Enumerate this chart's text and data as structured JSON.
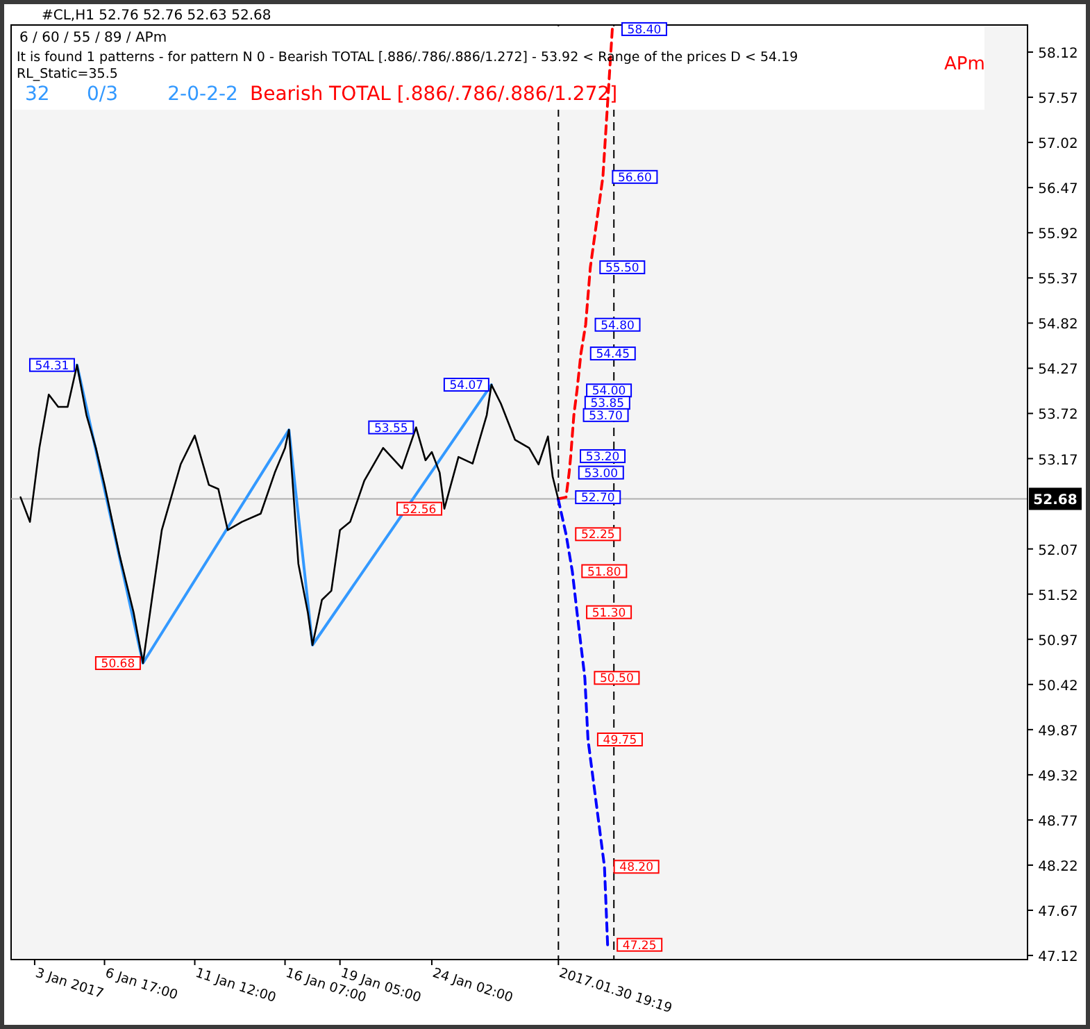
{
  "chart_data": {
    "type": "line",
    "title": "#CL,H1  52.76 52.76 52.63 52.68",
    "subtitle": "6 / 60 / 55 / 89 / APm",
    "x": [
      "2017-01-02T06:00",
      "2017-01-02T18:00",
      "2017-01-03T06:00",
      "2017-01-03T18:00",
      "2017-01-04T06:00",
      "2017-01-04T18:00",
      "2017-01-05T06:00",
      "2017-01-05T18:00",
      "2017-01-06T06:00",
      "2017-01-06T17:00",
      "2017-01-07T12:00",
      "2017-01-08T06:00",
      "2017-01-08T18:00",
      "2017-01-09T06:00",
      "2017-01-09T18:00",
      "2017-01-10T06:00",
      "2017-01-10T18:00",
      "2017-01-11T12:00",
      "2017-01-12T06:00",
      "2017-01-12T18:00",
      "2017-01-13T06:00",
      "2017-01-14T00:00",
      "2017-01-15T00:00",
      "2017-01-15T18:00",
      "2017-01-16T07:00",
      "2017-01-16T12:00",
      "2017-01-17T00:00",
      "2017-01-17T12:00",
      "2017-01-17T18:00",
      "2017-01-18T06:00",
      "2017-01-18T18:00",
      "2017-01-19T05:00",
      "2017-01-19T18:00",
      "2017-01-20T12:00",
      "2017-01-21T12:00",
      "2017-01-22T12:00",
      "2017-01-23T06:00",
      "2017-01-23T18:00",
      "2017-01-24T02:00",
      "2017-01-24T12:00",
      "2017-01-24T18:00",
      "2017-01-25T12:00",
      "2017-01-26T06:00",
      "2017-01-27T00:00",
      "2017-01-27T06:00",
      "2017-01-27T18:00",
      "2017-01-28T12:00",
      "2017-01-29T06:00",
      "2017-01-29T18:00",
      "2017-01-30T06:00",
      "2017-01-30T12:00",
      "2017-01-30T19:00"
    ],
    "series": [
      {
        "color": "#000000",
        "values": [
          52.7,
          52.4,
          53.3,
          53.95,
          53.8,
          53.8,
          54.31,
          53.7,
          53.3,
          52.85,
          52.0,
          51.3,
          50.68,
          51.5,
          52.3,
          52.7,
          53.1,
          53.45,
          52.85,
          52.8,
          52.3,
          52.4,
          52.5,
          53.0,
          53.3,
          53.52,
          51.89,
          51.3,
          50.9,
          51.45,
          51.56,
          52.3,
          52.4,
          52.9,
          53.3,
          53.05,
          53.55,
          53.15,
          53.25,
          53.0,
          52.56,
          53.19,
          53.11,
          53.7,
          54.07,
          53.84,
          53.4,
          53.3,
          53.1,
          53.44,
          52.95,
          52.68
        ]
      },
      {
        "color": "#3399ff",
        "x": [
          "2017-01-05T06:00",
          "2017-01-08T18:00",
          "2017-01-16T12:00",
          "2017-01-17T18:00",
          "2017-01-27T06:00"
        ],
        "values": [
          54.31,
          50.68,
          53.52,
          50.9,
          54.07
        ]
      },
      {
        "color": "#ff0000",
        "line_style": "dashed",
        "x": [
          "2017-01-30T19:00",
          "2017-01-31T05:00",
          "2017-01-31T09:00",
          "2017-01-31T11:00",
          "2017-01-31T15:00",
          "2017-01-31T17:00",
          "2017-01-31T19:00",
          "2017-02-01T00:00",
          "2017-02-01T06:00",
          "2017-02-01T12:00",
          "2017-02-02T04:00",
          "2017-02-02T16:00"
        ],
        "values": [
          52.68,
          52.7,
          53.0,
          53.2,
          53.7,
          53.85,
          54.0,
          54.45,
          54.8,
          55.5,
          56.6,
          58.4
        ]
      },
      {
        "color": "#0000ff",
        "line_style": "dashed",
        "x": [
          "2017-01-30T19:00",
          "2017-01-31T05:00",
          "2017-01-31T13:00",
          "2017-01-31T19:00",
          "2017-02-01T05:00",
          "2017-02-01T09:00",
          "2017-02-02T06:00",
          "2017-02-02T10:00"
        ],
        "values": [
          52.68,
          52.25,
          51.8,
          51.3,
          50.5,
          49.75,
          48.2,
          47.25
        ]
      }
    ],
    "xlim": [
      "2017-01-01T18:00",
      "2017-02-24T17:00"
    ],
    "ylim": [
      47.07,
      58.45
    ],
    "xticks": [
      {
        "value": "2017-01-03T00:00",
        "label": "3 Jan 2017"
      },
      {
        "value": "2017-01-06T17:00",
        "label": "6 Jan 17:00"
      },
      {
        "value": "2017-01-11T12:00",
        "label": "11 Jan 12:00"
      },
      {
        "value": "2017-01-16T07:00",
        "label": "16 Jan 07:00"
      },
      {
        "value": "2017-01-19T05:00",
        "label": "19 Jan 05:00"
      },
      {
        "value": "2017-01-24T02:00",
        "label": "24 Jan 02:00"
      },
      {
        "value": "2017-01-30T19:19",
        "label": "2017.01.30 19:19"
      }
    ],
    "yticks": [
      47.12,
      47.67,
      48.22,
      48.77,
      49.32,
      49.87,
      50.42,
      50.97,
      51.52,
      52.07,
      53.17,
      53.72,
      54.27,
      54.82,
      55.37,
      55.92,
      56.47,
      57.02,
      57.57,
      58.12
    ],
    "ref_lines": [
      {
        "axis": "y",
        "value": 52.68,
        "label": "52.68",
        "color": "#b0b0b0"
      },
      {
        "axis": "x",
        "value": "2017-01-30T19:19",
        "color": "#000000",
        "line_style": "dashed"
      },
      {
        "axis": "x",
        "value": "2017-02-02T18:00",
        "color": "#000000",
        "line_style": "dashed"
      }
    ],
    "annotations": [
      "It is found 1 patterns  -  for pattern N 0 - Bearish TOTAL [.886/.786/.886/1.272] - 53.92 < Range of the prices D < 54.19",
      "RL_Static=35.5",
      "32      0/3        2-0-2-2",
      "Bearish TOTAL [.886/.786/.886/1.272]",
      "APm",
      {
        "text": "58.40",
        "x": "2017-02-02T16:00",
        "y": 58.4
      },
      {
        "text": "56.60",
        "x": "2017-02-02T04:00",
        "y": 56.6
      },
      {
        "text": "55.50",
        "x": "2017-02-01T12:00",
        "y": 55.5
      },
      {
        "text": "54.80",
        "x": "2017-02-01T06:00",
        "y": 54.8
      },
      {
        "text": "54.45",
        "x": "2017-02-01T00:00",
        "y": 54.45
      },
      {
        "text": "54.00",
        "x": "2017-01-31T19:00",
        "y": 54.0
      },
      {
        "text": "53.85",
        "x": "2017-01-31T17:00",
        "y": 53.85
      },
      {
        "text": "53.70",
        "x": "2017-01-31T15:00",
        "y": 53.7
      },
      {
        "text": "53.20",
        "x": "2017-01-31T11:00",
        "y": 53.2
      },
      {
        "text": "53.00",
        "x": "2017-01-31T09:00",
        "y": 53.0
      },
      {
        "text": "52.70",
        "x": "2017-01-31T05:00",
        "y": 52.7
      },
      {
        "text": "52.25",
        "x": "2017-01-31T05:00",
        "y": 52.25
      },
      {
        "text": "51.80",
        "x": "2017-01-31T13:00",
        "y": 51.8
      },
      {
        "text": "51.30",
        "x": "2017-01-31T19:00",
        "y": 51.3
      },
      {
        "text": "50.50",
        "x": "2017-02-01T05:00",
        "y": 50.5
      },
      {
        "text": "49.75",
        "x": "2017-02-01T09:00",
        "y": 49.75
      },
      {
        "text": "48.20",
        "x": "2017-02-02T06:00",
        "y": 48.2
      },
      {
        "text": "47.25",
        "x": "2017-02-02T10:00",
        "y": 47.25
      },
      {
        "text": "54.31",
        "x": "2017-01-05T06:00",
        "y": 54.31
      },
      {
        "text": "50.68",
        "x": "2017-01-08T18:00",
        "y": 50.68
      },
      {
        "text": "54.07",
        "x": "2017-01-27T06:00",
        "y": 54.07
      },
      {
        "text": "53.55",
        "x": "2017-01-23T06:00",
        "y": 53.55
      },
      {
        "text": "52.56",
        "x": "2017-01-24T18:00",
        "y": 52.56
      }
    ]
  }
}
